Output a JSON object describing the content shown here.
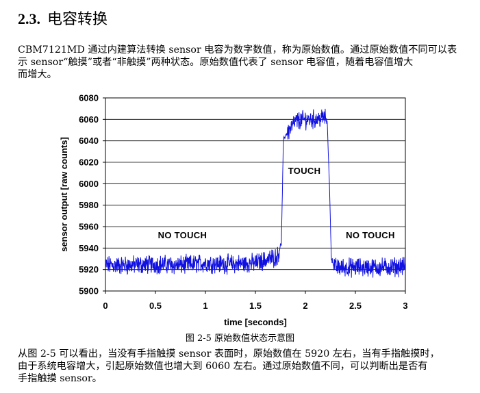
{
  "section": {
    "number": "2.3.",
    "title": "电容转换"
  },
  "intro": {
    "lines": [
      "CBM7121MD 通过内建算法转换 sensor 电容为数字数值，称为原始数值。通过原始数值不同可以表",
      "示 sensor“触摸”或者“非触摸”两种状态。原始数值代表了 sensor 电容值，随着电容值增大",
      "而增大。"
    ]
  },
  "figure": {
    "caption": "图 2-5  原始数值状态示意图"
  },
  "conclusion": {
    "lines": [
      "从图 2-5 可以看出，当没有手指触摸 sensor 表面时，原始数值在 5920 左右，当有手指触摸时，",
      "由于系统电容增大，引起原始数值也增大到 6060 左右。通过原始数值不同，可以判断出是否有",
      "手指触摸 sensor。"
    ]
  },
  "chart_data": {
    "type": "line",
    "title": "",
    "xlabel": "time [seconds]",
    "ylabel": "sensor output [raw counts]",
    "xlim": [
      0,
      3
    ],
    "ylim": [
      5900,
      6080
    ],
    "x_ticks": [
      "0",
      "0.5",
      "1",
      "1.5",
      "2",
      "2.5",
      "3"
    ],
    "y_ticks": [
      "5900",
      "5920",
      "5940",
      "5960",
      "5980",
      "6000",
      "6020",
      "6040",
      "6060",
      "6080"
    ],
    "grid": "horizontal",
    "line_color": "#1010e0",
    "annotations": [
      {
        "text": "NO TOUCH",
        "x": 0.77,
        "y": 5949
      },
      {
        "text": "TOUCH",
        "x": 1.99,
        "y": 6009
      },
      {
        "text": "NO TOUCH",
        "x": 2.65,
        "y": 5949
      }
    ],
    "series": [
      {
        "x": [
          0,
          0.25,
          0.5,
          0.75,
          1.0,
          1.25,
          1.5,
          1.72,
          1.76,
          1.78,
          1.8,
          1.9,
          2.0,
          2.1,
          2.2,
          2.22,
          2.24,
          2.26,
          2.3,
          2.5,
          2.75,
          3.0
        ],
        "y": [
          5924,
          5924,
          5925,
          5924,
          5926,
          5925,
          5926,
          5932,
          5945,
          6040,
          6045,
          6058,
          6060,
          6060,
          6062,
          6055,
          6000,
          5930,
          5922,
          5922,
          5922,
          5923
        ]
      }
    ]
  }
}
